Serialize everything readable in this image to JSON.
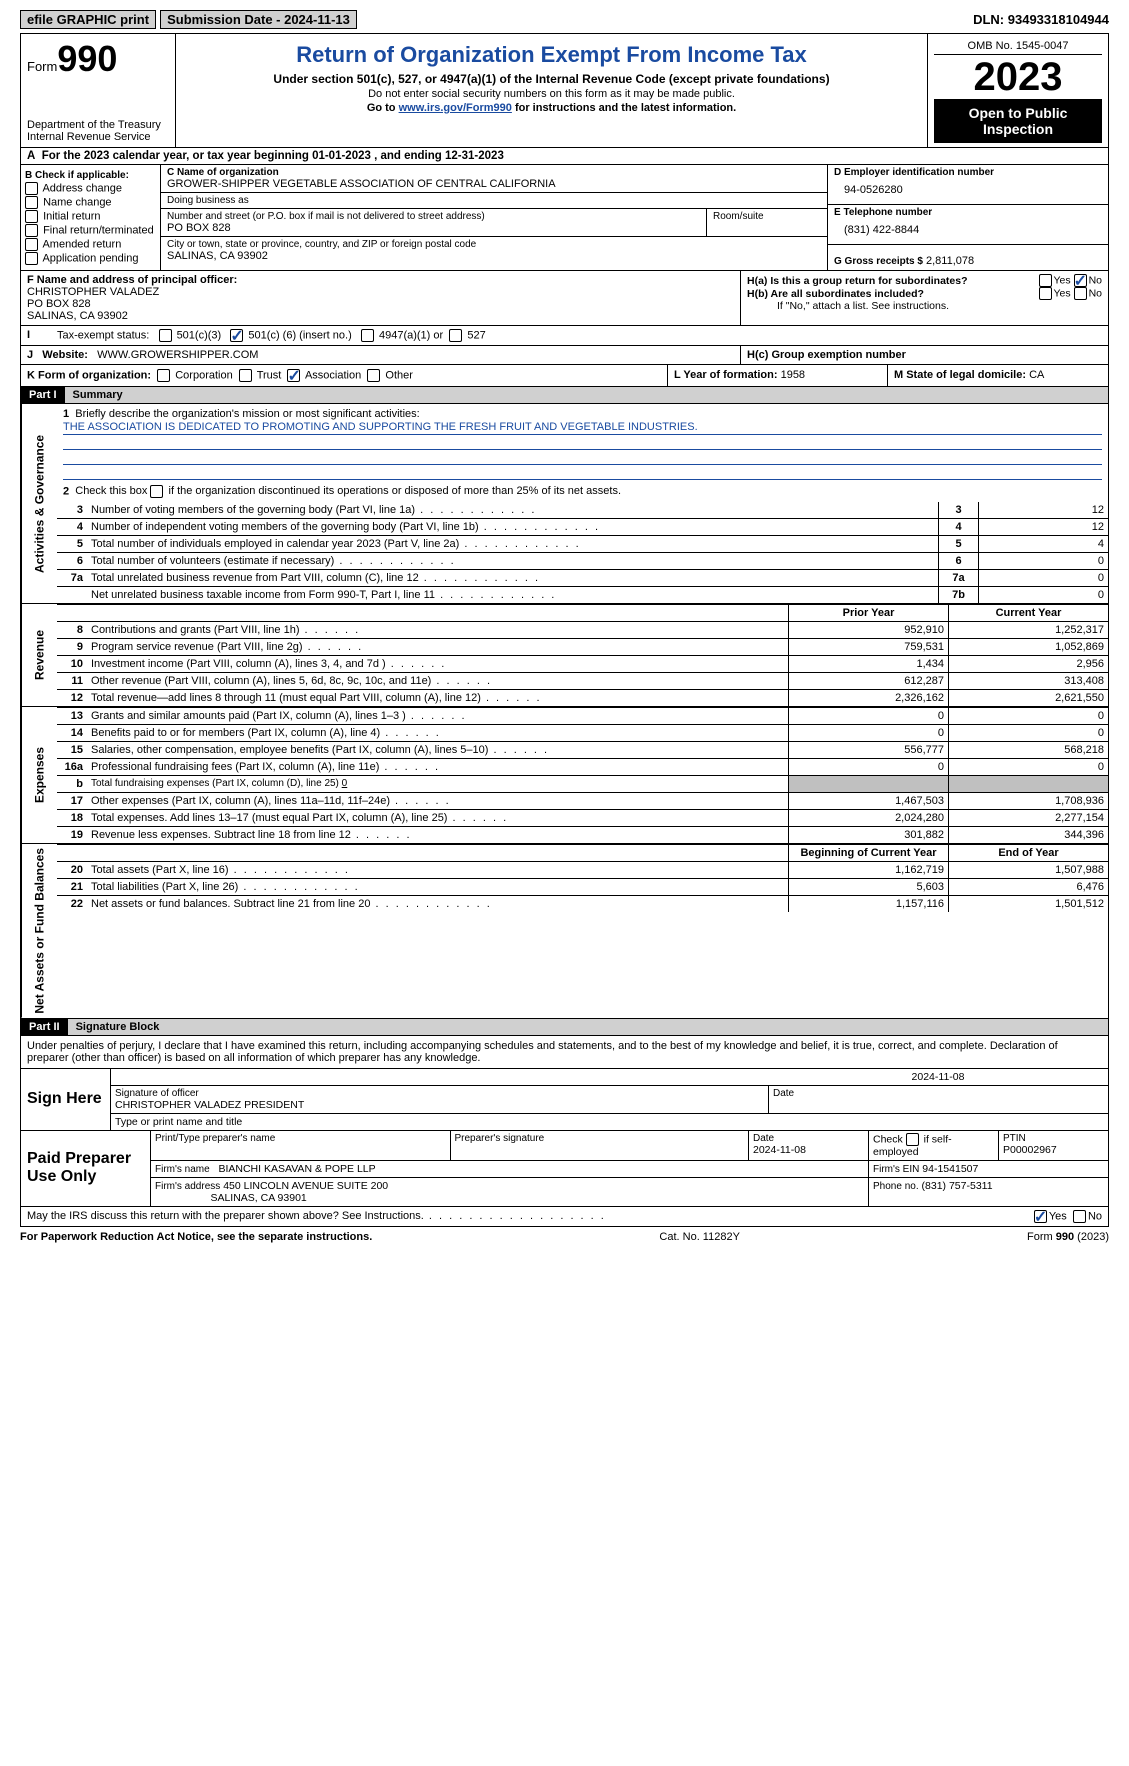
{
  "colors": {
    "link": "#1a4ba0",
    "grey_bg": "#c0c0c0",
    "btn_bg": "#d0d0d0"
  },
  "topbar": {
    "efile": "efile GRAPHIC print",
    "submission": "Submission Date - 2024-11-13",
    "dln_label": "DLN:",
    "dln": "93493318104944"
  },
  "header": {
    "form_word": "Form",
    "form_num": "990",
    "dept": "Department of the Treasury\nInternal Revenue Service",
    "title": "Return of Organization Exempt From Income Tax",
    "sub1": "Under section 501(c), 527, or 4947(a)(1) of the Internal Revenue Code (except private foundations)",
    "sub2": "Do not enter social security numbers on this form as it may be made public.",
    "sub3_pre": "Go to ",
    "sub3_link": "www.irs.gov/Form990",
    "sub3_post": " for instructions and the latest information.",
    "omb": "OMB No. 1545-0047",
    "year": "2023",
    "open": "Open to Public Inspection"
  },
  "period": {
    "pre": "For the 2023 calendar year, or tax year beginning ",
    "begin": "01-01-2023",
    "mid": "   , and ending ",
    "end": "12-31-2023",
    "A": "A"
  },
  "boxB": {
    "label": "B Check if applicable:",
    "items": [
      "Address change",
      "Name change",
      "Initial return",
      "Final return/terminated",
      "Amended return",
      "Application pending"
    ]
  },
  "boxC": {
    "name_lbl": "C Name of organization",
    "name": "GROWER-SHIPPER VEGETABLE ASSOCIATION OF CENTRAL CALIFORNIA",
    "dba_lbl": "Doing business as",
    "dba": "",
    "addr_lbl": "Number and street (or P.O. box if mail is not delivered to street address)",
    "room_lbl": "Room/suite",
    "addr": "PO BOX 828",
    "city_lbl": "City or town, state or province, country, and ZIP or foreign postal code",
    "city": "SALINAS, CA  93902"
  },
  "boxD": {
    "lbl": "D Employer identification number",
    "val": "94-0526280"
  },
  "boxE": {
    "lbl": "E Telephone number",
    "val": "(831) 422-8844"
  },
  "boxG": {
    "lbl": "G Gross receipts $",
    "val": "2,811,078"
  },
  "boxF": {
    "lbl": "F  Name and address of principal officer:",
    "l1": "CHRISTOPHER VALADEZ",
    "l2": "PO BOX 828",
    "l3": "SALINAS, CA  93902"
  },
  "boxH": {
    "ha_lbl": "H(a)  Is this a group return for subordinates?",
    "hb_lbl": "H(b)  Are all subordinates included?",
    "hb_note": "If \"No,\" attach a list. See instructions.",
    "hc_lbl": "H(c)  Group exemption number",
    "yes": "Yes",
    "no": "No",
    "ha_answer": "No"
  },
  "status": {
    "I": "I",
    "lbl": "Tax-exempt status:",
    "o1": "501(c)(3)",
    "o2_pre": "501(c) (",
    "o2_val": "6",
    "o2_post": ") (insert no.)",
    "o3": "4947(a)(1) or",
    "o4": "527"
  },
  "web": {
    "J": "J",
    "lbl": "Website:",
    "val": "WWW.GROWERSHIPPER.COM"
  },
  "boxK": {
    "lbl": "K Form of organization:",
    "opts": [
      "Corporation",
      "Trust",
      "Association",
      "Other"
    ],
    "checked_idx": 2
  },
  "boxL": {
    "lbl": "L Year of formation:",
    "val": "1958"
  },
  "boxM": {
    "lbl": "M State of legal domicile:",
    "val": "CA"
  },
  "part1": {
    "hdr": "Part I",
    "title": "Summary"
  },
  "summary": {
    "q1": {
      "n": "1",
      "txt": "Briefly describe the organization's mission or most significant activities:",
      "val": "THE ASSOCIATION IS DEDICATED TO PROMOTING AND SUPPORTING THE FRESH FRUIT AND VEGETABLE INDUSTRIES."
    },
    "q2": {
      "n": "2",
      "txt": "Check this box        if the organization discontinued its operations or disposed of more than 25% of its net assets."
    },
    "lines_ag": [
      {
        "n": "3",
        "txt": "Number of voting members of the governing body (Part VI, line 1a)",
        "box": "3",
        "val": "12"
      },
      {
        "n": "4",
        "txt": "Number of independent voting members of the governing body (Part VI, line 1b)",
        "box": "4",
        "val": "12"
      },
      {
        "n": "5",
        "txt": "Total number of individuals employed in calendar year 2023 (Part V, line 2a)",
        "box": "5",
        "val": "4"
      },
      {
        "n": "6",
        "txt": "Total number of volunteers (estimate if necessary)",
        "box": "6",
        "val": "0"
      },
      {
        "n": "7a",
        "txt": "Total unrelated business revenue from Part VIII, column (C), line 12",
        "box": "7a",
        "val": "0"
      },
      {
        "n": "",
        "txt": "Net unrelated business taxable income from Form 990-T, Part I, line 11",
        "box": "7b",
        "val": "0"
      }
    ],
    "b_note": "b",
    "col_hdr": {
      "prior": "Prior Year",
      "current": "Current Year",
      "boy": "Beginning of Current Year",
      "eoy": "End of Year"
    },
    "revenue": [
      {
        "n": "8",
        "txt": "Contributions and grants (Part VIII, line 1h)",
        "p": "952,910",
        "c": "1,252,317"
      },
      {
        "n": "9",
        "txt": "Program service revenue (Part VIII, line 2g)",
        "p": "759,531",
        "c": "1,052,869"
      },
      {
        "n": "10",
        "txt": "Investment income (Part VIII, column (A), lines 3, 4, and 7d )",
        "p": "1,434",
        "c": "2,956"
      },
      {
        "n": "11",
        "txt": "Other revenue (Part VIII, column (A), lines 5, 6d, 8c, 9c, 10c, and 11e)",
        "p": "612,287",
        "c": "313,408"
      },
      {
        "n": "12",
        "txt": "Total revenue—add lines 8 through 11 (must equal Part VIII, column (A), line 12)",
        "p": "2,326,162",
        "c": "2,621,550"
      }
    ],
    "expenses": [
      {
        "n": "13",
        "txt": "Grants and similar amounts paid (Part IX, column (A), lines 1–3 )",
        "p": "0",
        "c": "0"
      },
      {
        "n": "14",
        "txt": "Benefits paid to or for members (Part IX, column (A), line 4)",
        "p": "0",
        "c": "0"
      },
      {
        "n": "15",
        "txt": "Salaries, other compensation, employee benefits (Part IX, column (A), lines 5–10)",
        "p": "556,777",
        "c": "568,218"
      },
      {
        "n": "16a",
        "txt": "Professional fundraising fees (Part IX, column (A), line 11e)",
        "p": "0",
        "c": "0"
      },
      {
        "n": "b",
        "txt": "Total fundraising expenses (Part IX, column (D), line 25)",
        "fval": "0",
        "grey": true
      },
      {
        "n": "17",
        "txt": "Other expenses (Part IX, column (A), lines 11a–11d, 11f–24e)",
        "p": "1,467,503",
        "c": "1,708,936"
      },
      {
        "n": "18",
        "txt": "Total expenses. Add lines 13–17 (must equal Part IX, column (A), line 25)",
        "p": "2,024,280",
        "c": "2,277,154"
      },
      {
        "n": "19",
        "txt": "Revenue less expenses. Subtract line 18 from line 12",
        "p": "301,882",
        "c": "344,396"
      }
    ],
    "balances": [
      {
        "n": "20",
        "txt": "Total assets (Part X, line 16)",
        "p": "1,162,719",
        "c": "1,507,988"
      },
      {
        "n": "21",
        "txt": "Total liabilities (Part X, line 26)",
        "p": "5,603",
        "c": "6,476"
      },
      {
        "n": "22",
        "txt": "Net assets or fund balances. Subtract line 21 from line 20",
        "p": "1,157,116",
        "c": "1,501,512"
      }
    ],
    "vlabels": {
      "ag": "Activities & Governance",
      "rev": "Revenue",
      "exp": "Expenses",
      "bal": "Net Assets or Fund Balances"
    }
  },
  "part2": {
    "hdr": "Part II",
    "title": "Signature Block"
  },
  "penalty": "Under penalties of perjury, I declare that I have examined this return, including accompanying schedules and statements, and to the best of my knowledge and belief, it is true, correct, and complete. Declaration of preparer (other than officer) is based on all information of which preparer has any knowledge.",
  "sign": {
    "here": "Sign Here",
    "date": "2024-11-08",
    "sig_lbl": "Signature of officer",
    "date_lbl": "Date",
    "officer": "CHRISTOPHER VALADEZ  PRESIDENT",
    "type_lbl": "Type or print name and title"
  },
  "preparer": {
    "lbl": "Paid Preparer Use Only",
    "name_lbl": "Print/Type preparer's name",
    "name": "",
    "sig_lbl": "Preparer's signature",
    "date_lbl": "Date",
    "date": "2024-11-08",
    "self_lbl": "Check         if self-employed",
    "ptin_lbl": "PTIN",
    "ptin": "P00002967",
    "firm_lbl": "Firm's name",
    "firm": "BIANCHI KASAVAN & POPE LLP",
    "ein_lbl": "Firm's EIN",
    "ein": "94-1541507",
    "addr_lbl": "Firm's address",
    "addr1": "450 LINCOLN AVENUE SUITE 200",
    "addr2": "SALINAS, CA  93901",
    "phone_lbl": "Phone no.",
    "phone": "(831) 757-5311"
  },
  "discuss": {
    "txt": "May the IRS discuss this return with the preparer shown above? See Instructions.",
    "yes": "Yes",
    "no": "No",
    "answer": "Yes"
  },
  "footer": {
    "l": "For Paperwork Reduction Act Notice, see the separate instructions.",
    "c": "Cat. No. 11282Y",
    "r": "Form 990 (2023)"
  }
}
